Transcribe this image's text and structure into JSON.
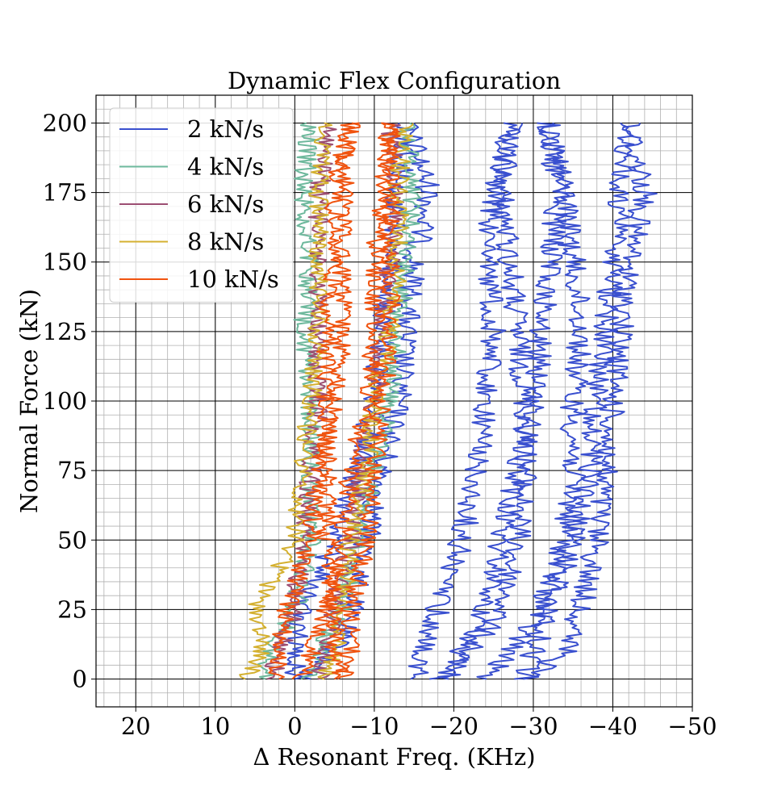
{
  "chart_data": {
    "type": "line",
    "title": "Dynamic Flex Configuration",
    "xlabel": "Δ Resonant Freq. (KHz)",
    "ylabel": "Normal Force (kN)",
    "xlim": [
      25,
      -50
    ],
    "ylim": [
      -10,
      210
    ],
    "x_inverted": true,
    "x_ticks": [
      20,
      10,
      0,
      -10,
      -20,
      -30,
      -40,
      -50
    ],
    "x_tick_labels": [
      "20",
      "10",
      "0",
      "−10",
      "−20",
      "−30",
      "−40",
      "−50"
    ],
    "y_ticks": [
      0,
      25,
      50,
      75,
      100,
      125,
      150,
      175,
      200
    ],
    "y_tick_labels": [
      "0",
      "25",
      "50",
      "75",
      "100",
      "125",
      "150",
      "175",
      "200"
    ],
    "x_minor_step": 2,
    "y_minor_step": 5,
    "grid": true,
    "legend_position": "top-left",
    "series": [
      {
        "name": "2 kN/s",
        "color": "#3a50cf",
        "curves": [
          {
            "y": [
              0,
              10,
              25,
              50,
              75,
              100,
              125,
              150,
              175,
              200
            ],
            "x": [
              -0.5,
              0,
              -1,
              -5,
              -8,
              -10,
              -11,
              -12,
              -13,
              -14
            ]
          },
          {
            "y": [
              200,
              175,
              150,
              125,
              100,
              75,
              50,
              25,
              10,
              0
            ],
            "x": [
              -14,
              -17,
              -15,
              -14,
              -13,
              -11,
              -9,
              -7,
              -5,
              -1
            ]
          },
          {
            "y": [
              0,
              10,
              25,
              50,
              75,
              100,
              125,
              150,
              175,
              200
            ],
            "x": [
              -15,
              -16,
              -18,
              -21,
              -23,
              -24,
              -25,
              -24,
              -25,
              -27
            ]
          },
          {
            "y": [
              200,
              175,
              150,
              125,
              100,
              75,
              50,
              25,
              10,
              0
            ],
            "x": [
              -27,
              -26,
              -27,
              -28,
              -29,
              -29,
              -28,
              -26,
              -22,
              -18
            ]
          },
          {
            "y": [
              0,
              10,
              25,
              50,
              75,
              100,
              125,
              150,
              175,
              200
            ],
            "x": [
              -19,
              -21,
              -24,
              -26,
              -28,
              -30,
              -31,
              -32,
              -33,
              -32
            ]
          },
          {
            "y": [
              200,
              175,
              150,
              125,
              100,
              75,
              50,
              25,
              10,
              0
            ],
            "x": [
              -32,
              -34,
              -35,
              -36,
              -35,
              -35,
              -34,
              -31,
              -27,
              -24
            ]
          },
          {
            "y": [
              0,
              10,
              25,
              50,
              75,
              100,
              125,
              150,
              175,
              200
            ],
            "x": [
              -29,
              -30,
              -32,
              -35,
              -37,
              -38,
              -39,
              -40,
              -41,
              -42
            ]
          },
          {
            "y": [
              200,
              175,
              150,
              125,
              100,
              75,
              50,
              25,
              10,
              0
            ],
            "x": [
              -42,
              -44,
              -42,
              -41,
              -40,
              -39,
              -38,
              -36,
              -34,
              -29
            ]
          }
        ]
      },
      {
        "name": "4 kN/s",
        "color": "#6db89c",
        "curves": [
          {
            "y": [
              0,
              10,
              25,
              50,
              75,
              100,
              125,
              150,
              175,
              200
            ],
            "x": [
              4,
              3,
              0,
              -2,
              -2,
              -2,
              -1,
              -2,
              -1,
              -2
            ]
          },
          {
            "y": [
              200,
              175,
              150,
              125,
              100,
              75,
              50,
              25,
              10,
              0
            ],
            "x": [
              -14,
              -15,
              -14,
              -13,
              -12,
              -10,
              -8,
              -6,
              -3,
              -2
            ]
          }
        ]
      },
      {
        "name": "6 kN/s",
        "color": "#9c4e72",
        "curves": [
          {
            "y": [
              0,
              10,
              25,
              50,
              75,
              100,
              125,
              150,
              175,
              200
            ],
            "x": [
              3,
              2,
              0,
              -1,
              -2,
              -3,
              -3,
              -3,
              -3,
              -4
            ]
          },
          {
            "y": [
              200,
              175,
              150,
              125,
              100,
              75,
              50,
              25,
              10,
              0
            ],
            "x": [
              -12,
              -13,
              -12,
              -11,
              -10,
              -8,
              -7,
              -5,
              -4,
              -3
            ]
          }
        ]
      },
      {
        "name": "8 kN/s",
        "color": "#d4b030",
        "curves": [
          {
            "y": [
              0,
              10,
              25,
              50,
              75,
              100,
              125,
              150,
              175,
              200
            ],
            "x": [
              6,
              4,
              5,
              0,
              -1,
              -2,
              -3,
              -3,
              -3,
              -4
            ]
          },
          {
            "y": [
              200,
              175,
              150,
              125,
              100,
              75,
              50,
              25,
              10,
              0
            ],
            "x": [
              -14,
              -13,
              -13,
              -12,
              -10,
              -9,
              -7,
              -6,
              -5,
              -4
            ]
          }
        ]
      },
      {
        "name": "10 kN/s",
        "color": "#f0530f",
        "curves": [
          {
            "y": [
              0,
              10,
              25,
              50,
              75,
              100,
              125,
              150,
              175,
              200
            ],
            "x": [
              2,
              2,
              1,
              -2,
              -3,
              -5,
              -6,
              -6,
              -6,
              -7
            ]
          },
          {
            "y": [
              200,
              175,
              150,
              125,
              100,
              75,
              50,
              25,
              10,
              0
            ],
            "x": [
              -7,
              -5,
              -5,
              -4,
              -4,
              -4,
              -4,
              -5,
              -5,
              -6
            ]
          },
          {
            "y": [
              0,
              10,
              25,
              50,
              75,
              100,
              125,
              150,
              175,
              200
            ],
            "x": [
              -1,
              -2,
              -4,
              -6,
              -7,
              -9,
              -10,
              -10,
              -11,
              -12
            ]
          },
          {
            "y": [
              200,
              175,
              150,
              125,
              100,
              75,
              50,
              25,
              10,
              0
            ],
            "x": [
              -12,
              -12,
              -12,
              -12,
              -11,
              -10,
              -9,
              -7,
              -7,
              -6
            ]
          }
        ]
      }
    ]
  }
}
